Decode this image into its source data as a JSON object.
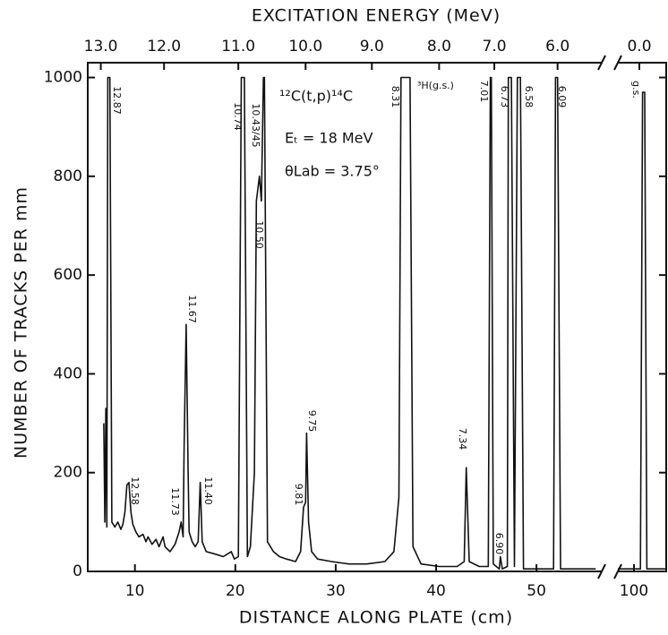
{
  "chart_data": {
    "type": "line",
    "title": "EXCITATION ENERGY (MeV)",
    "x_label": "DISTANCE ALONG PLATE (cm)",
    "y_label": "NUMBER OF TRACKS PER mm",
    "color": "#111111",
    "xlim": [
      5.3,
      103
    ],
    "x_break": [
      56.5,
      98.5
    ],
    "ylim": [
      0,
      1030
    ],
    "xticks": [
      10,
      20,
      30,
      40,
      50,
      100
    ],
    "yticks": [
      0,
      200,
      400,
      600,
      800,
      1000
    ],
    "x2ticks": [
      {
        "value": 6.6,
        "label": "13.0"
      },
      {
        "value": 12.9,
        "label": "12.0"
      },
      {
        "value": 20.3,
        "label": "11.0"
      },
      {
        "value": 27.0,
        "label": "10.0"
      },
      {
        "value": 33.6,
        "label": "9.0"
      },
      {
        "value": 40.3,
        "label": "8.0"
      },
      {
        "value": 45.8,
        "label": "7.0"
      },
      {
        "value": 52.1,
        "label": "6.0"
      },
      {
        "value": 100.5,
        "label": "0.0"
      }
    ],
    "annotations": [
      "12.87",
      "12.58",
      "11.73",
      "11.67",
      "11.40",
      "10.74",
      "10.43/45",
      "10.50",
      "9.81",
      "9.75",
      "8.31",
      "³H(g.s.)",
      "7.01",
      "7.34",
      "6.90",
      "6.73",
      "6.58",
      "6.09",
      "g.s."
    ],
    "reaction": [
      "¹²C(t,p)¹⁴C",
      "Eₜ = 18 MeV",
      "θLab = 3.75°"
    ],
    "x": [
      6.9,
      7.0,
      7.1,
      7.2,
      7.3,
      7.5,
      7.7,
      8.0,
      8.3,
      8.6,
      8.8,
      9.0,
      9.2,
      9.4,
      9.6,
      9.8,
      10.1,
      10.4,
      10.8,
      11.1,
      11.3,
      11.7,
      12.1,
      12.4,
      12.8,
      13.0,
      13.5,
      14.0,
      14.4,
      14.6,
      14.8,
      14.9,
      15.1,
      15.3,
      15.4,
      15.7,
      16.0,
      16.3,
      16.5,
      16.7,
      17.1,
      18.0,
      18.8,
      19.6,
      19.9,
      20.3,
      20.6,
      20.9,
      21.2,
      21.5,
      21.9,
      22.1,
      22.4,
      22.6,
      22.8,
      22.9,
      23.2,
      23.8,
      24.4,
      25.1,
      26.0,
      26.5,
      26.8,
      27.0,
      27.1,
      27.3,
      27.6,
      28.2,
      29.6,
      31.3,
      33.1,
      34.9,
      35.8,
      36.3,
      36.5,
      37.4,
      37.7,
      38.5,
      40.3,
      42.1,
      42.8,
      43.0,
      43.3,
      44.3,
      45.2,
      45.4,
      45.5,
      45.7,
      46.3,
      46.4,
      46.6,
      47.1,
      47.2,
      47.5,
      47.8,
      48.1,
      48.4,
      48.7,
      51.7,
      51.9,
      52.1,
      52.4,
      55.9,
      null,
      98.5,
      100.6,
      100.8,
      101.0,
      101.2,
      103
    ],
    "values": [
      300,
      100,
      330,
      90,
      1000,
      1000,
      100,
      90,
      100,
      85,
      95,
      120,
      175,
      180,
      120,
      95,
      80,
      70,
      75,
      60,
      70,
      55,
      65,
      50,
      70,
      50,
      40,
      55,
      80,
      100,
      70,
      250,
      500,
      200,
      80,
      60,
      50,
      60,
      180,
      60,
      40,
      35,
      30,
      40,
      25,
      30,
      1000,
      1000,
      30,
      50,
      200,
      750,
      800,
      750,
      1000,
      1000,
      60,
      40,
      30,
      25,
      20,
      40,
      130,
      140,
      280,
      100,
      40,
      25,
      20,
      15,
      15,
      20,
      40,
      150,
      1000,
      1000,
      50,
      15,
      10,
      10,
      20,
      210,
      20,
      10,
      10,
      1000,
      1000,
      15,
      5,
      30,
      5,
      10,
      1000,
      1000,
      10,
      1000,
      1000,
      5,
      5,
      1000,
      1000,
      5,
      5,
      null,
      5,
      5,
      970,
      970,
      5,
      5
    ]
  }
}
